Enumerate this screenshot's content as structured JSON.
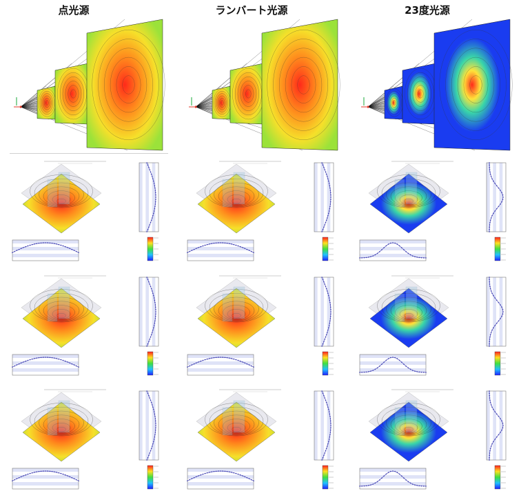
{
  "columns": [
    {
      "key": "point",
      "title": "点光源",
      "scheme": "warm",
      "profile": "broad"
    },
    {
      "key": "lambert",
      "title": "ランバート光源",
      "scheme": "warm",
      "profile": "broad"
    },
    {
      "key": "deg23",
      "title": "23度光源",
      "scheme": "blue",
      "profile": "narrow"
    }
  ],
  "rows": 3,
  "colors": {
    "warm_center": "#ff2a1a",
    "warm_mid": "#ff8a1c",
    "warm_outer": "#f6e02a",
    "warm_edge": "#9be23a",
    "blue_center": "#ff2a1a",
    "blue_mid": "#ffe23a",
    "blue_mid2": "#3ad6a8",
    "blue_outer": "#1a3cf0",
    "axis_icon": "#1aa83a",
    "ray": "#111111",
    "band": "#dfe3f7",
    "dot": "#3a3ab0"
  }
}
